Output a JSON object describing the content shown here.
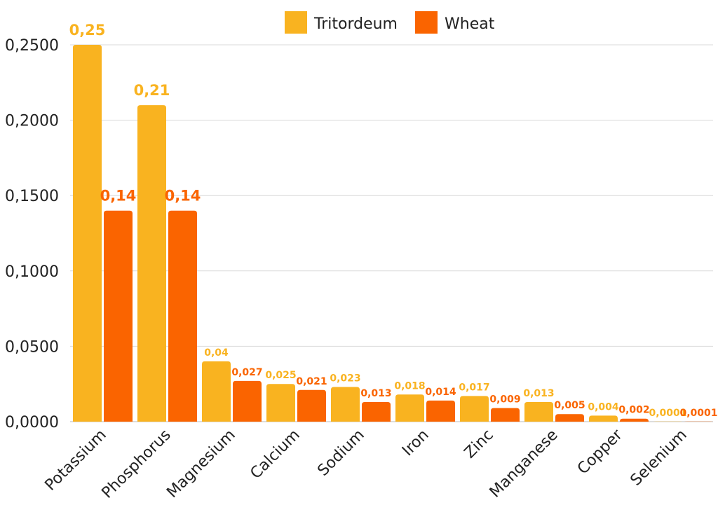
{
  "chart_data": {
    "type": "bar",
    "title": "",
    "xlabel": "",
    "ylabel": "",
    "ylim": [
      0,
      0.25
    ],
    "yticks": [
      "0,0000",
      "0,0500",
      "0,1000",
      "0,1500",
      "0,2000",
      "0,2500"
    ],
    "ytick_values": [
      0,
      0.05,
      0.1,
      0.15,
      0.2,
      0.25
    ],
    "grid": true,
    "legend_position": "top-center",
    "categories": [
      "Potassium",
      "Phosphorus",
      "Magnesium",
      "Calcium",
      "Sodium",
      "Iron",
      "Zinc",
      "Manganese",
      "Copper",
      "Selenium"
    ],
    "series": [
      {
        "name": "Tritordeum",
        "color": "#F9B320",
        "values": [
          0.25,
          0.21,
          0.04,
          0.025,
          0.023,
          0.018,
          0.017,
          0.013,
          0.004,
          0.0001
        ],
        "labels": [
          "0,25",
          "0,21",
          "0,04",
          "0,025",
          "0,023",
          "0,018",
          "0,017",
          "0,013",
          "0,004",
          "0,0001"
        ]
      },
      {
        "name": "Wheat",
        "color": "#FA6400",
        "values": [
          0.14,
          0.14,
          0.027,
          0.021,
          0.013,
          0.014,
          0.009,
          0.005,
          0.002,
          0.0001
        ],
        "labels": [
          "0,14",
          "0,14",
          "0,027",
          "0,021",
          "0,013",
          "0,014",
          "0,009",
          "0,005",
          "0,002",
          "0,0001"
        ]
      }
    ]
  }
}
